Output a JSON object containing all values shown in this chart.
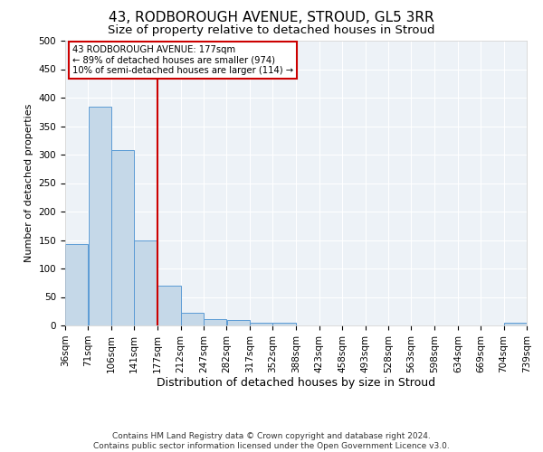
{
  "title": "43, RODBOROUGH AVENUE, STROUD, GL5 3RR",
  "subtitle": "Size of property relative to detached houses in Stroud",
  "xlabel": "Distribution of detached houses by size in Stroud",
  "ylabel": "Number of detached properties",
  "bar_color": "#c5d8e8",
  "bar_edge_color": "#5b9bd5",
  "vline_x": 177,
  "vline_color": "#cc0000",
  "annotation_line1": "43 RODBOROUGH AVENUE: 177sqm",
  "annotation_line2": "← 89% of detached houses are smaller (974)",
  "annotation_line3": "10% of semi-detached houses are larger (114) →",
  "annotation_box_color": "#cc0000",
  "bins": [
    36,
    71,
    106,
    141,
    177,
    212,
    247,
    282,
    317,
    352,
    388,
    423,
    458,
    493,
    528,
    563,
    598,
    634,
    669,
    704,
    739
  ],
  "values": [
    143,
    384,
    308,
    149,
    70,
    23,
    11,
    9,
    5,
    5,
    0,
    0,
    0,
    0,
    0,
    0,
    0,
    0,
    0,
    5
  ],
  "ylim": [
    0,
    500
  ],
  "yticks": [
    0,
    50,
    100,
    150,
    200,
    250,
    300,
    350,
    400,
    450,
    500
  ],
  "background_color": "#edf2f7",
  "grid_color": "#ffffff",
  "footer": "Contains HM Land Registry data © Crown copyright and database right 2024.\nContains public sector information licensed under the Open Government Licence v3.0.",
  "title_fontsize": 11,
  "subtitle_fontsize": 9.5,
  "xlabel_fontsize": 9,
  "ylabel_fontsize": 8,
  "tick_fontsize": 7.5,
  "footer_fontsize": 6.5
}
